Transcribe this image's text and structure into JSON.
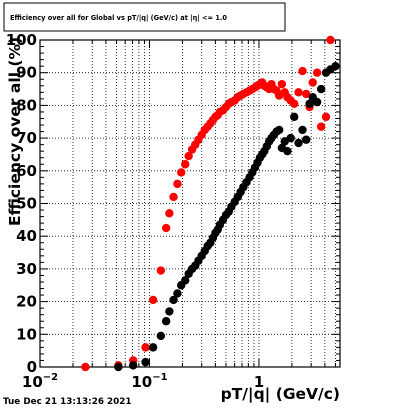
{
  "chart_data": {
    "type": "scatter",
    "title": "Efficiency over all for Global vs pT/|q| (GeV/c) at |η| <= 1.0",
    "xlabel": "pT/|q| (GeV/c)",
    "ylabel": "Efficiency over all (%)",
    "xscale": "log",
    "xlim": [
      0.01,
      5.5
    ],
    "ylim": [
      0,
      100
    ],
    "xticks": [
      {
        "value": 0.01,
        "label": "10",
        "sup": "−2"
      },
      {
        "value": 0.1,
        "label": "10",
        "sup": "−1"
      },
      {
        "value": 1,
        "label": "1",
        "sup": ""
      }
    ],
    "yticks": [
      0,
      10,
      20,
      30,
      40,
      50,
      60,
      70,
      80,
      90,
      100
    ],
    "grid": true,
    "legend": "none",
    "timestamp": "Tue Dec 21 13:13:26 2021",
    "series": [
      {
        "color": "#ff0000",
        "points": [
          {
            "x": 0.026,
            "y": 0
          },
          {
            "x": 0.052,
            "y": 0.5
          },
          {
            "x": 0.071,
            "y": 2
          },
          {
            "x": 0.092,
            "y": 6
          },
          {
            "x": 0.108,
            "y": 20.5
          },
          {
            "x": 0.127,
            "y": 29.5
          },
          {
            "x": 0.142,
            "y": 42.5
          },
          {
            "x": 0.152,
            "y": 47
          },
          {
            "x": 0.166,
            "y": 52
          },
          {
            "x": 0.18,
            "y": 56
          },
          {
            "x": 0.195,
            "y": 59.5
          },
          {
            "x": 0.212,
            "y": 62
          },
          {
            "x": 0.228,
            "y": 64.5
          },
          {
            "x": 0.245,
            "y": 66.5
          },
          {
            "x": 0.262,
            "y": 68
          },
          {
            "x": 0.28,
            "y": 69.5
          },
          {
            "x": 0.3,
            "y": 71
          },
          {
            "x": 0.32,
            "y": 72.5
          },
          {
            "x": 0.34,
            "y": 73.5
          },
          {
            "x": 0.36,
            "y": 74.5
          },
          {
            "x": 0.38,
            "y": 75.5
          },
          {
            "x": 0.4,
            "y": 76.5
          },
          {
            "x": 0.42,
            "y": 77
          },
          {
            "x": 0.44,
            "y": 78
          },
          {
            "x": 0.47,
            "y": 78.5
          },
          {
            "x": 0.5,
            "y": 79.5
          },
          {
            "x": 0.53,
            "y": 80.5
          },
          {
            "x": 0.56,
            "y": 81
          },
          {
            "x": 0.6,
            "y": 81.5
          },
          {
            "x": 0.64,
            "y": 82.5
          },
          {
            "x": 0.68,
            "y": 83
          },
          {
            "x": 0.72,
            "y": 83.5
          },
          {
            "x": 0.77,
            "y": 84
          },
          {
            "x": 0.82,
            "y": 84.5
          },
          {
            "x": 0.87,
            "y": 85
          },
          {
            "x": 0.92,
            "y": 85.5
          },
          {
            "x": 0.97,
            "y": 86
          },
          {
            "x": 1.02,
            "y": 86.5
          },
          {
            "x": 1.07,
            "y": 87
          },
          {
            "x": 1.12,
            "y": 86
          },
          {
            "x": 1.18,
            "y": 85.5
          },
          {
            "x": 1.24,
            "y": 85
          },
          {
            "x": 1.3,
            "y": 86.5
          },
          {
            "x": 1.37,
            "y": 85
          },
          {
            "x": 1.45,
            "y": 84.5
          },
          {
            "x": 1.53,
            "y": 83
          },
          {
            "x": 1.62,
            "y": 86.5
          },
          {
            "x": 1.72,
            "y": 84
          },
          {
            "x": 1.82,
            "y": 82.5
          },
          {
            "x": 1.95,
            "y": 81.5
          },
          {
            "x": 2.1,
            "y": 80.5
          },
          {
            "x": 2.3,
            "y": 84
          },
          {
            "x": 2.5,
            "y": 90.5
          },
          {
            "x": 2.7,
            "y": 83.5
          },
          {
            "x": 2.9,
            "y": 79.5
          },
          {
            "x": 3.1,
            "y": 87
          },
          {
            "x": 3.4,
            "y": 90
          },
          {
            "x": 3.7,
            "y": 73.5
          },
          {
            "x": 4.1,
            "y": 76.5
          },
          {
            "x": 4.5,
            "y": 100
          }
        ]
      },
      {
        "color": "#000000",
        "points": [
          {
            "x": 0.052,
            "y": 0
          },
          {
            "x": 0.071,
            "y": 0.5
          },
          {
            "x": 0.092,
            "y": 1.5
          },
          {
            "x": 0.108,
            "y": 6
          },
          {
            "x": 0.127,
            "y": 9.5
          },
          {
            "x": 0.142,
            "y": 14
          },
          {
            "x": 0.152,
            "y": 17
          },
          {
            "x": 0.166,
            "y": 20.5
          },
          {
            "x": 0.18,
            "y": 22.5
          },
          {
            "x": 0.195,
            "y": 25
          },
          {
            "x": 0.212,
            "y": 26.5
          },
          {
            "x": 0.228,
            "y": 28.5
          },
          {
            "x": 0.245,
            "y": 30
          },
          {
            "x": 0.262,
            "y": 31
          },
          {
            "x": 0.28,
            "y": 32.5
          },
          {
            "x": 0.3,
            "y": 34
          },
          {
            "x": 0.32,
            "y": 35.5
          },
          {
            "x": 0.34,
            "y": 37
          },
          {
            "x": 0.36,
            "y": 38
          },
          {
            "x": 0.38,
            "y": 39.5
          },
          {
            "x": 0.4,
            "y": 41
          },
          {
            "x": 0.42,
            "y": 42
          },
          {
            "x": 0.44,
            "y": 43.5
          },
          {
            "x": 0.47,
            "y": 45
          },
          {
            "x": 0.5,
            "y": 46.5
          },
          {
            "x": 0.53,
            "y": 47.5
          },
          {
            "x": 0.56,
            "y": 49
          },
          {
            "x": 0.6,
            "y": 50.5
          },
          {
            "x": 0.64,
            "y": 52
          },
          {
            "x": 0.68,
            "y": 53.5
          },
          {
            "x": 0.72,
            "y": 55
          },
          {
            "x": 0.77,
            "y": 56.5
          },
          {
            "x": 0.82,
            "y": 58
          },
          {
            "x": 0.87,
            "y": 59.5
          },
          {
            "x": 0.92,
            "y": 61
          },
          {
            "x": 0.97,
            "y": 62.5
          },
          {
            "x": 1.02,
            "y": 64
          },
          {
            "x": 1.07,
            "y": 65
          },
          {
            "x": 1.12,
            "y": 66
          },
          {
            "x": 1.18,
            "y": 67.5
          },
          {
            "x": 1.24,
            "y": 69
          },
          {
            "x": 1.3,
            "y": 70
          },
          {
            "x": 1.37,
            "y": 71
          },
          {
            "x": 1.45,
            "y": 72
          },
          {
            "x": 1.53,
            "y": 72.5
          },
          {
            "x": 1.62,
            "y": 67
          },
          {
            "x": 1.72,
            "y": 69
          },
          {
            "x": 1.82,
            "y": 66
          },
          {
            "x": 1.95,
            "y": 70
          },
          {
            "x": 2.1,
            "y": 76.5
          },
          {
            "x": 2.3,
            "y": 68.5
          },
          {
            "x": 2.5,
            "y": 72.5
          },
          {
            "x": 2.7,
            "y": 69.5
          },
          {
            "x": 2.9,
            "y": 80.5
          },
          {
            "x": 3.1,
            "y": 82.5
          },
          {
            "x": 3.4,
            "y": 81
          },
          {
            "x": 3.7,
            "y": 85
          },
          {
            "x": 4.1,
            "y": 90
          },
          {
            "x": 4.5,
            "y": 91
          },
          {
            "x": 5.0,
            "y": 92
          }
        ]
      }
    ]
  }
}
